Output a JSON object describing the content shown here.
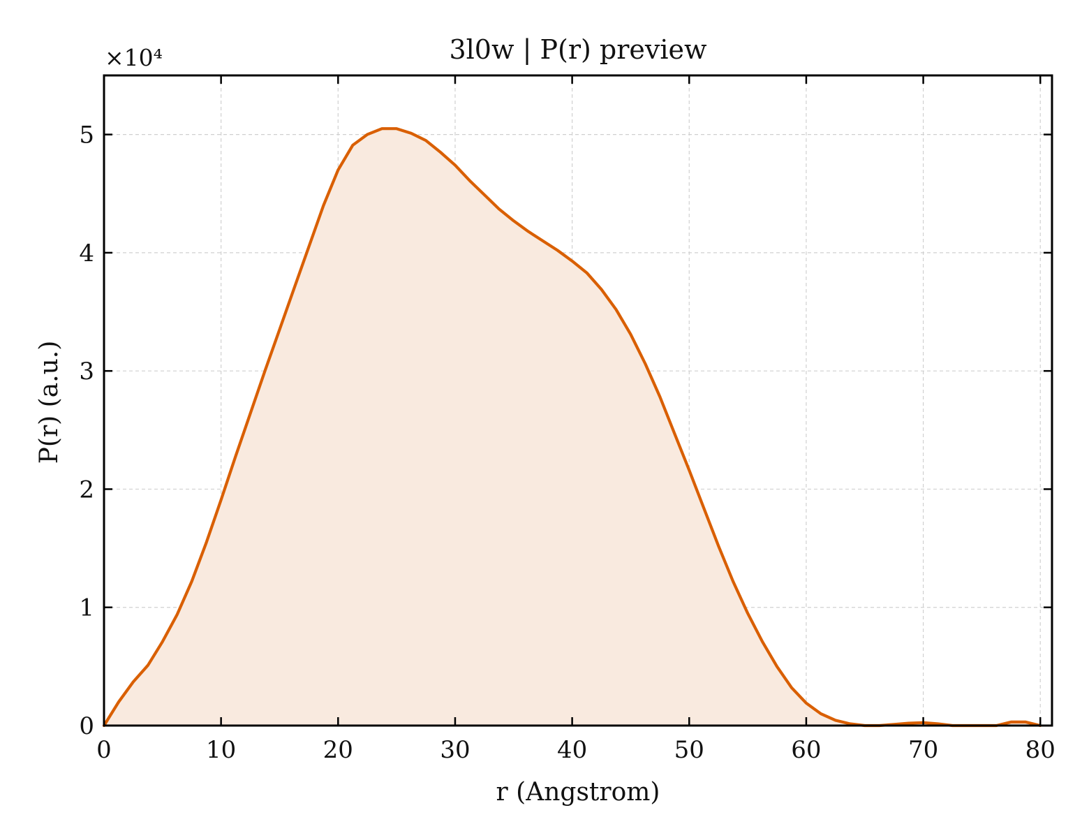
{
  "chart_data": {
    "type": "area",
    "title": "3l0w | P(r) preview",
    "xlabel": "r (Angstrom)",
    "ylabel": "P(r) (a.u.)",
    "y_scale_label": "×10⁴",
    "y_multiplier": 10000,
    "xlim": [
      0,
      81
    ],
    "ylim": [
      0,
      5.5
    ],
    "xticks": [
      0,
      10,
      20,
      30,
      40,
      50,
      60,
      70,
      80
    ],
    "yticks": [
      0,
      1,
      2,
      3,
      4,
      5
    ],
    "grid": true,
    "legend": "none",
    "colors": {
      "line": "#d95f02",
      "fill": "#f9eadf"
    },
    "series": [
      {
        "x": [
          0,
          1.25,
          2.5,
          3.75,
          5,
          6.25,
          7.5,
          8.75,
          10,
          11.25,
          12.5,
          13.75,
          15,
          16.25,
          17.5,
          18.75,
          20,
          21.25,
          22.5,
          23.75,
          25,
          26.25,
          27.5,
          28.75,
          30,
          31.25,
          32.5,
          33.75,
          35,
          36.25,
          37.5,
          38.75,
          40,
          41.25,
          42.5,
          43.75,
          45,
          46.25,
          47.5,
          48.75,
          50,
          51.25,
          52.5,
          53.75,
          55,
          56.25,
          57.5,
          58.75,
          60,
          61.25,
          62.5,
          63.75,
          65,
          66.25,
          67.5,
          68.75,
          70,
          71.25,
          72.5,
          73.75,
          75,
          76.25,
          77.5,
          78.75,
          80
        ],
        "values": [
          0,
          0.2,
          0.37,
          0.51,
          0.71,
          0.94,
          1.22,
          1.55,
          1.91,
          2.28,
          2.64,
          3.0,
          3.35,
          3.7,
          4.05,
          4.4,
          4.7,
          4.91,
          5.0,
          5.05,
          5.05,
          5.01,
          4.95,
          4.85,
          4.74,
          4.61,
          4.49,
          4.37,
          4.27,
          4.18,
          4.1,
          4.02,
          3.93,
          3.83,
          3.69,
          3.52,
          3.31,
          3.06,
          2.78,
          2.47,
          2.16,
          1.84,
          1.52,
          1.22,
          0.95,
          0.71,
          0.5,
          0.32,
          0.19,
          0.1,
          0.045,
          0.015,
          0.0,
          0.0,
          0.01,
          0.02,
          0.025,
          0.015,
          0.0,
          0.0,
          0.0,
          0.0,
          0.03,
          0.03,
          0.0
        ]
      }
    ]
  }
}
